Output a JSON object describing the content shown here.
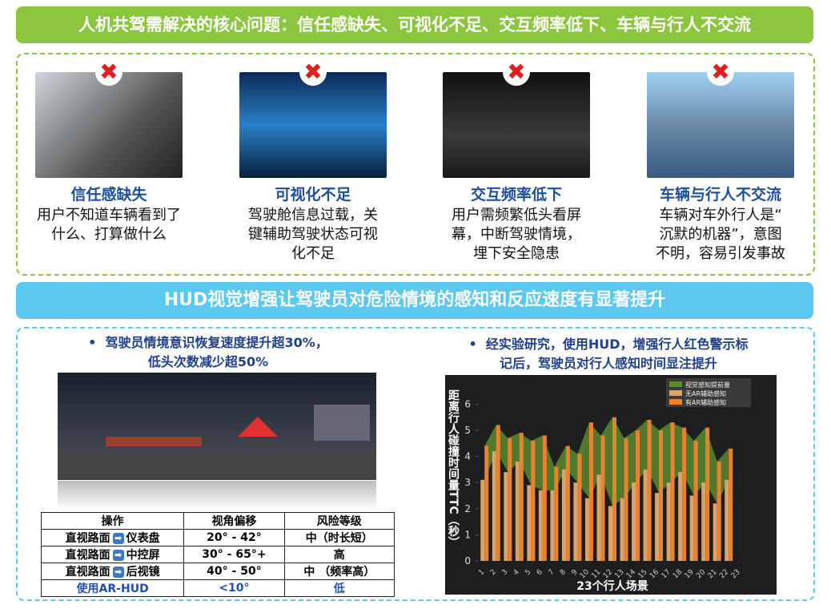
{
  "banner_top": "人机共驾需解决的核心问题：信任感缺失、可视化不足、交互频率低下、车辆与行人不交流",
  "cards": [
    {
      "title": "信任感缺失",
      "lines": [
        "用户不知道车辆看到了",
        "什么、打算做什么"
      ]
    },
    {
      "title": "可视化不足",
      "lines": [
        "驾驶舱信息过载，关",
        "键辅助驾驶状态可视",
        "化不足"
      ]
    },
    {
      "title": "交互频率低下",
      "lines": [
        "用户需频繁低头看屏",
        "幕，中断驾驶情境，",
        "埋下安全隐患"
      ]
    },
    {
      "title": "车辆与行人不交流",
      "lines": [
        "车辆对车外行人是“",
        "沉默的机器”，意图",
        "不明，容易引发事故"
      ]
    }
  ],
  "banner_mid": "HUD视觉增强让驾驶员对危险情境的感知和反应速度有显著提升",
  "left": {
    "bullet": [
      "驾驶员情境意识恢复速度提升超30%，",
      "低头次数减少超50%"
    ],
    "table": {
      "header": [
        "操作",
        "视角偏移",
        "风险等级"
      ],
      "rows": [
        [
          [
            "直视路面",
            "仪表盘"
          ],
          "20° - 42°",
          "中（时长短）"
        ],
        [
          [
            "直视路面",
            "中控屏"
          ],
          "30° - 65°+",
          "高"
        ],
        [
          [
            "直视路面",
            "后视镜"
          ],
          "40° - 50°",
          "中 （频率高）"
        ],
        [
          [
            "使用AR-HUD"
          ],
          "<10°",
          "低"
        ]
      ]
    }
  },
  "right": {
    "bullet": [
      "经实验研究，使用HUD，增强行人红色警示标",
      "记后，驾驶员对行人感知时间显注提升"
    ]
  },
  "chart_data": {
    "type": "bar",
    "y_label": "距离行人碰撞时间量TTC（秒）",
    "x_label": "23个行人场景",
    "categories": [
      "1",
      "2",
      "3",
      "4",
      "5",
      "6",
      "7",
      "8",
      "9",
      "10",
      "11",
      "12",
      "13",
      "14",
      "15",
      "16",
      "17",
      "18",
      "19",
      "20",
      "21",
      "22",
      "23"
    ],
    "series": [
      {
        "name": "视觉感知提前量",
        "color": "#5a8a2e",
        "values": [
          1.3,
          1.0,
          1.3,
          1.1,
          1.7,
          2.1,
          0.9,
          0.9,
          1.1,
          2.9,
          1.5,
          3.4,
          2.3,
          2.0,
          1.9,
          2.4,
          2.3,
          1.7,
          2.1,
          2.1,
          1.6,
          1.2,
          null
        ]
      },
      {
        "name": "无AR辅助感知",
        "color": "#d9a46a",
        "values": [
          3.1,
          4.2,
          3.4,
          3.8,
          2.9,
          2.7,
          2.7,
          3.5,
          3.0,
          2.4,
          3.3,
          2.1,
          2.4,
          3.0,
          3.5,
          2.6,
          3.0,
          3.4,
          2.5,
          3.0,
          2.2,
          3.1,
          null
        ]
      },
      {
        "name": "有AR辅助感知",
        "color": "#e8822f",
        "values": [
          4.4,
          5.2,
          4.7,
          4.9,
          4.6,
          4.8,
          3.6,
          4.4,
          4.1,
          5.3,
          4.8,
          5.5,
          4.7,
          5.0,
          5.4,
          5.0,
          5.3,
          5.1,
          4.6,
          5.1,
          3.8,
          4.3,
          null
        ]
      }
    ],
    "ylim": [
      0,
      6.5
    ],
    "yticks": [
      0,
      1,
      2,
      3,
      4,
      5,
      6
    ]
  }
}
